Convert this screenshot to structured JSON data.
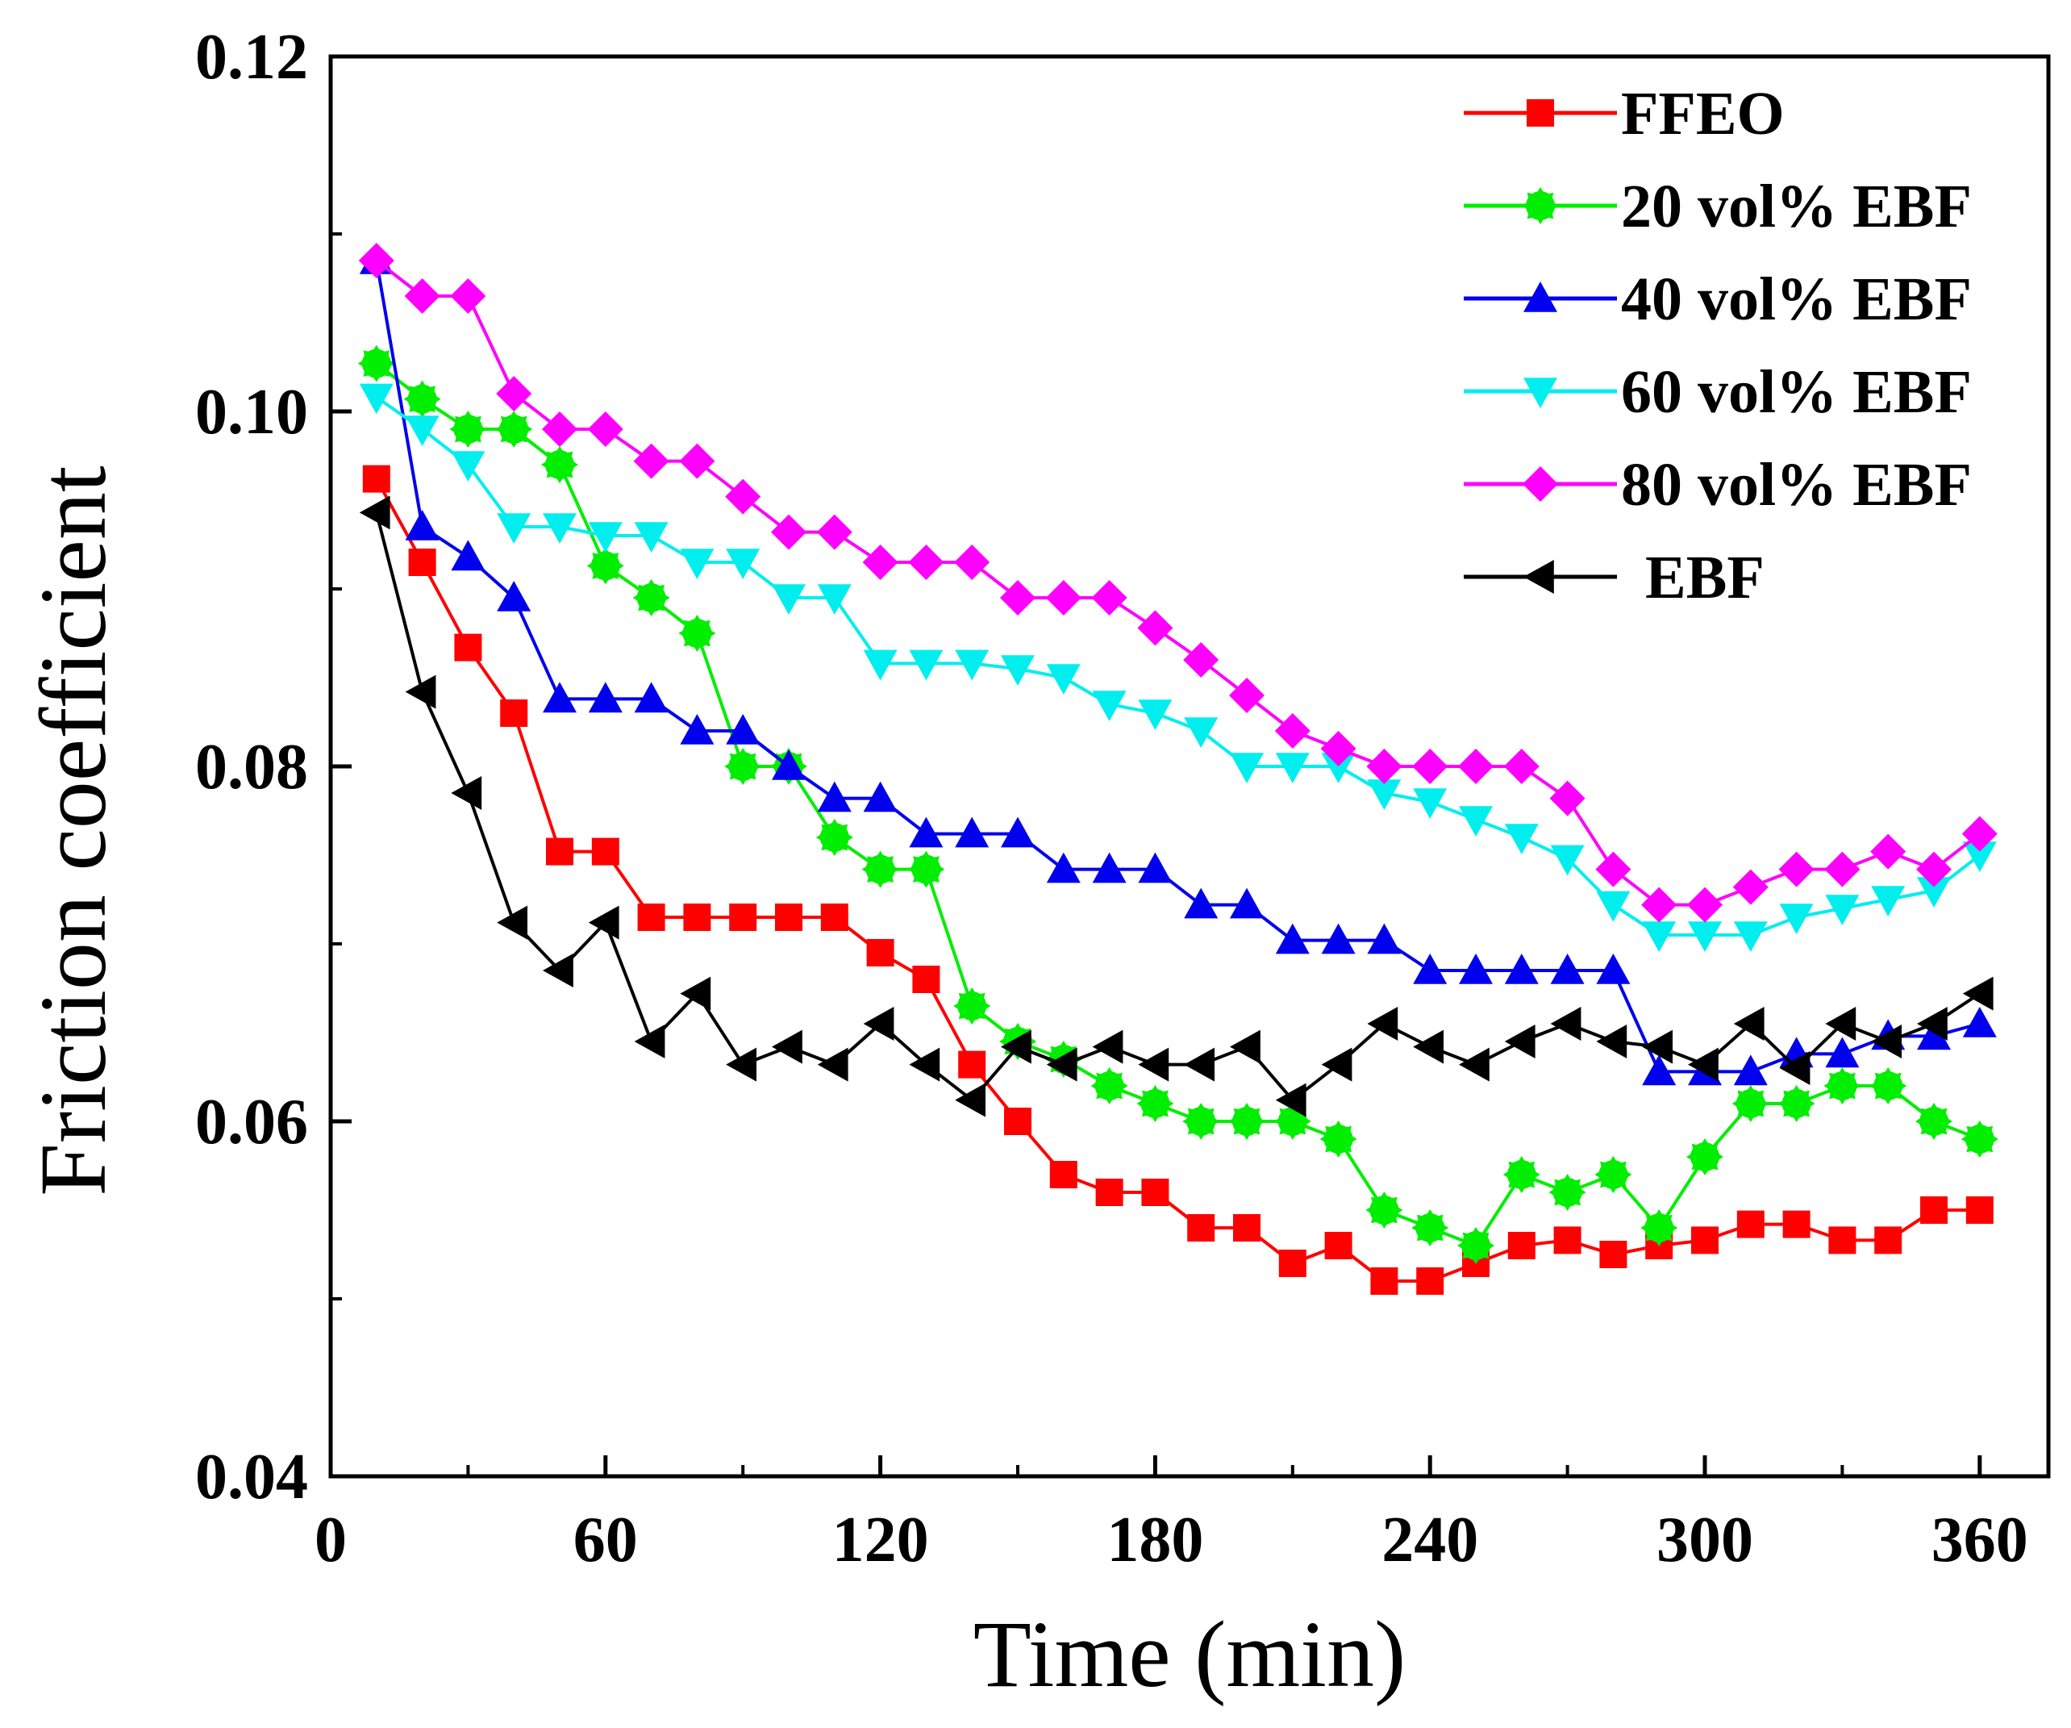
{
  "chart_data": {
    "type": "line",
    "title": "",
    "xlabel": "Time (min)",
    "ylabel": "Friction coefficient",
    "xlim": [
      0,
      375
    ],
    "ylim": [
      0.04,
      0.12
    ],
    "xticks": [
      0,
      60,
      120,
      180,
      240,
      300,
      360
    ],
    "xtick_labels": [
      "0",
      "60",
      "120",
      "180",
      "240",
      "300",
      "360"
    ],
    "yticks": [
      0.04,
      0.06,
      0.08,
      0.1,
      0.12
    ],
    "ytick_labels": [
      "0.04",
      "0.06",
      "0.08",
      "0.10",
      "0.12"
    ],
    "grid": false,
    "legend_position": "top-right",
    "x": [
      10,
      20,
      30,
      40,
      50,
      60,
      70,
      80,
      90,
      100,
      110,
      120,
      130,
      140,
      150,
      160,
      170,
      180,
      190,
      200,
      210,
      220,
      230,
      240,
      250,
      260,
      270,
      280,
      290,
      300,
      310,
      320,
      330,
      340,
      350,
      360
    ],
    "series": [
      {
        "name": "FFEO",
        "color": "#ff0000",
        "marker": "square",
        "values": [
          0.0962,
          0.0915,
          0.0867,
          0.083,
          0.0752,
          0.0752,
          0.0715,
          0.0715,
          0.0715,
          0.0715,
          0.0715,
          0.0695,
          0.068,
          0.0632,
          0.06,
          0.057,
          0.056,
          0.056,
          0.054,
          0.054,
          0.052,
          0.053,
          0.051,
          0.051,
          0.052,
          0.053,
          0.0533,
          0.0525,
          0.053,
          0.0533,
          0.0542,
          0.0542,
          0.0533,
          0.0533,
          0.055,
          0.055
        ]
      },
      {
        "name": "20 vol% EBF",
        "color": "#00ee00",
        "marker": "circle-star",
        "values": [
          0.1027,
          0.1007,
          0.099,
          0.099,
          0.097,
          0.0913,
          0.0895,
          0.0875,
          0.08,
          0.08,
          0.076,
          0.0742,
          0.0742,
          0.0665,
          0.0645,
          0.0635,
          0.062,
          0.061,
          0.06,
          0.06,
          0.06,
          0.059,
          0.055,
          0.054,
          0.053,
          0.057,
          0.056,
          0.057,
          0.054,
          0.058,
          0.061,
          0.061,
          0.062,
          0.062,
          0.06,
          0.059
        ]
      },
      {
        "name": "40 vol% EBF",
        "color": "#0000ee",
        "marker": "triangle-up",
        "values": [
          0.1085,
          0.0935,
          0.0918,
          0.0895,
          0.0838,
          0.0838,
          0.0838,
          0.082,
          0.082,
          0.08,
          0.0782,
          0.0782,
          0.0762,
          0.0762,
          0.0762,
          0.0742,
          0.0742,
          0.0742,
          0.0722,
          0.0722,
          0.0702,
          0.0702,
          0.0702,
          0.0685,
          0.0685,
          0.0685,
          0.0685,
          0.0685,
          0.0628,
          0.0628,
          0.0628,
          0.0638,
          0.0638,
          0.0648,
          0.0648,
          0.0655
        ]
      },
      {
        "name": "60 vol% EBF",
        "color": "#00eeee",
        "marker": "triangle-down",
        "values": [
          0.1008,
          0.099,
          0.097,
          0.0935,
          0.0935,
          0.093,
          0.093,
          0.0915,
          0.0915,
          0.0895,
          0.0895,
          0.0858,
          0.0858,
          0.0858,
          0.0855,
          0.085,
          0.0835,
          0.083,
          0.082,
          0.08,
          0.08,
          0.08,
          0.0785,
          0.078,
          0.077,
          0.076,
          0.0748,
          0.0722,
          0.0705,
          0.0705,
          0.0705,
          0.0715,
          0.072,
          0.0725,
          0.073,
          0.075
        ]
      },
      {
        "name": "80 vol% EBF",
        "color": "#ff00ff",
        "marker": "diamond",
        "values": [
          0.1085,
          0.1065,
          0.1065,
          0.101,
          0.099,
          0.099,
          0.0972,
          0.0972,
          0.0952,
          0.0932,
          0.0932,
          0.0915,
          0.0915,
          0.0915,
          0.0895,
          0.0895,
          0.0895,
          0.0878,
          0.086,
          0.084,
          0.082,
          0.081,
          0.08,
          0.08,
          0.08,
          0.08,
          0.0782,
          0.0742,
          0.0722,
          0.0722,
          0.0732,
          0.0742,
          0.0742,
          0.0752,
          0.0742,
          0.0762
        ]
      },
      {
        "name": "EBF",
        "color": "#000000",
        "marker": "triangle-left",
        "values": [
          0.0943,
          0.0842,
          0.0785,
          0.0712,
          0.0685,
          0.0712,
          0.0645,
          0.0672,
          0.0632,
          0.0642,
          0.0632,
          0.0655,
          0.0632,
          0.0612,
          0.0642,
          0.0632,
          0.0642,
          0.0632,
          0.0632,
          0.0642,
          0.0612,
          0.0632,
          0.0655,
          0.0642,
          0.0632,
          0.0645,
          0.0655,
          0.0645,
          0.0642,
          0.0632,
          0.0655,
          0.063,
          0.0655,
          0.0645,
          0.0655,
          0.0672
        ]
      }
    ]
  }
}
